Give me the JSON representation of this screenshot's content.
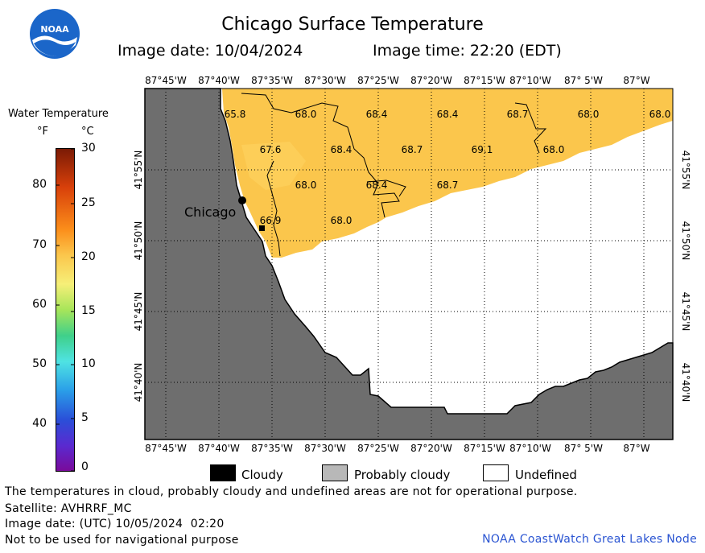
{
  "title": "Chicago Surface Temperature",
  "image_date_label": "Image date: 10/04/2024",
  "image_time_label": "Image time: 22:20 (EDT)",
  "logo_text": "NOAA",
  "legend": {
    "title": "Water Temperature",
    "unit_f": "°F",
    "unit_c": "°C",
    "f_ticks": [
      "80",
      "70",
      "60",
      "50",
      "40"
    ],
    "c_ticks": [
      "30",
      "25",
      "20",
      "15",
      "10",
      "5",
      "0"
    ]
  },
  "map": {
    "lon_labels": [
      "87°45'W",
      "87°40'W",
      "87°35'W",
      "87°30'W",
      "87°25'W",
      "87°20'W",
      "87°15'W",
      "87°10'W",
      "87° 5'W",
      "87°W"
    ],
    "lat_labels": [
      "41°55'N",
      "41°50'N",
      "41°45'N",
      "41°40'N"
    ],
    "city_label": "Chicago",
    "temperatures": [
      {
        "label": "65.8"
      },
      {
        "label": "68.0"
      },
      {
        "label": "68.4"
      },
      {
        "label": "68.4"
      },
      {
        "label": "68.7"
      },
      {
        "label": "68.0"
      },
      {
        "label": "68.0"
      },
      {
        "label": "67.6"
      },
      {
        "label": "68.4"
      },
      {
        "label": "68.7"
      },
      {
        "label": "69.1"
      },
      {
        "label": "68.0"
      },
      {
        "label": "68.0"
      },
      {
        "label": "68.4"
      },
      {
        "label": "68.7"
      },
      {
        "label": "66.9"
      },
      {
        "label": "68.0"
      }
    ],
    "colors": {
      "land": "#6e6e6e",
      "water_warm": "#fbc64c",
      "undefined": "#ffffff"
    }
  },
  "key": {
    "cloudy": "Cloudy",
    "probably_cloudy": "Probably cloudy",
    "undefined": "Undefined"
  },
  "footer": {
    "note": "The temperatures in cloud, probably cloudy and undefined areas are not for operational purpose.",
    "satellite": "Satellite: AVHRRF_MC",
    "utc_date": "Image date: (UTC) 10/05/2024  02:20",
    "nav": "Not to be used for navigational purpose",
    "node": "NOAA CoastWatch Great Lakes Node"
  }
}
